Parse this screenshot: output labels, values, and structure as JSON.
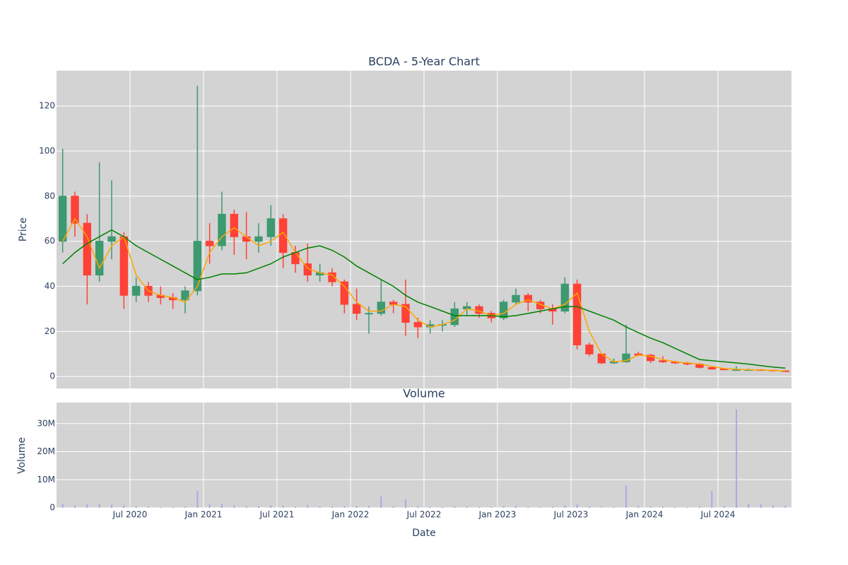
{
  "chart_data": {
    "type": "candlestick",
    "title": "BCDA - 5-Year Chart",
    "y_label": "Price",
    "x_label": "Date",
    "x": [
      "2020-01",
      "2020-02",
      "2020-03",
      "2020-04",
      "2020-05",
      "2020-06",
      "2020-07",
      "2020-08",
      "2020-09",
      "2020-10",
      "2020-11",
      "2020-12",
      "2021-01",
      "2021-02",
      "2021-03",
      "2021-04",
      "2021-05",
      "2021-06",
      "2021-07",
      "2021-08",
      "2021-09",
      "2021-10",
      "2021-11",
      "2021-12",
      "2022-01",
      "2022-02",
      "2022-03",
      "2022-04",
      "2022-05",
      "2022-06",
      "2022-07",
      "2022-08",
      "2022-09",
      "2022-10",
      "2022-11",
      "2022-12",
      "2023-01",
      "2023-02",
      "2023-03",
      "2023-04",
      "2023-05",
      "2023-06",
      "2023-07",
      "2023-08",
      "2023-09",
      "2023-10",
      "2023-11",
      "2023-12",
      "2024-01",
      "2024-02",
      "2024-03",
      "2024-04",
      "2024-05",
      "2024-06",
      "2024-07",
      "2024-08",
      "2024-09",
      "2024-10",
      "2024-11",
      "2024-12"
    ],
    "open": [
      60,
      80,
      68,
      45,
      60,
      62,
      36,
      40,
      36,
      35,
      34,
      38,
      60,
      58,
      72,
      62,
      60,
      62,
      70,
      55,
      50,
      45,
      46,
      42,
      32,
      28,
      28,
      33,
      32,
      24,
      22,
      23,
      23,
      30,
      31,
      28,
      26,
      33,
      36,
      33,
      30,
      29,
      41,
      14,
      10,
      6,
      6.5,
      10,
      9.5,
      7,
      6.5,
      6,
      5.5,
      4,
      3.3,
      3,
      3,
      3,
      2.8,
      2.5
    ],
    "high": [
      101,
      82,
      72,
      95,
      87,
      64,
      44,
      42,
      40,
      37,
      40,
      129,
      68,
      82,
      74,
      73,
      68,
      76,
      72,
      58,
      59,
      50,
      48,
      43,
      39,
      31,
      43,
      34,
      43,
      26,
      25,
      25,
      33,
      33,
      32,
      29,
      34,
      39,
      37,
      34,
      32,
      44,
      43,
      15,
      10,
      8,
      23,
      11,
      10,
      9,
      7,
      6.5,
      6,
      4.5,
      3.8,
      4.5,
      3.5,
      3.3,
      3,
      2.8
    ],
    "low": [
      55,
      62,
      32,
      42,
      52,
      30,
      33,
      33,
      32,
      30,
      28,
      36,
      50,
      56,
      54,
      52,
      55,
      58,
      48,
      46,
      42,
      42,
      40,
      28,
      25,
      19,
      27,
      28,
      18,
      17,
      19,
      20,
      22,
      27,
      26,
      24,
      25,
      32,
      29,
      28,
      23,
      28,
      12,
      9,
      5.5,
      5.5,
      6,
      9,
      6,
      6,
      5.5,
      5,
      3.5,
      3,
      2.8,
      2.5,
      2.6,
      2.5,
      2.2,
      2
    ],
    "close": [
      80,
      68,
      45,
      60,
      62,
      36,
      40,
      36,
      35,
      34,
      38,
      60,
      58,
      72,
      62,
      60,
      62,
      70,
      55,
      50,
      45,
      46,
      42,
      32,
      28,
      28,
      33,
      32,
      24,
      22,
      23,
      23,
      30,
      31,
      28,
      26,
      33,
      36,
      33,
      30,
      29,
      41,
      14,
      10,
      6,
      6.5,
      10,
      9.5,
      7,
      6.5,
      6,
      5.5,
      4,
      3.3,
      3,
      3,
      3,
      2.8,
      2.5,
      2.3
    ],
    "increasing_color": "#3d9970",
    "decreasing_color": "#ff4136",
    "lines": [
      {
        "color": "orange",
        "values": [
          60,
          70,
          62,
          48,
          58,
          62,
          45,
          38,
          36,
          35,
          33,
          40,
          55,
          62,
          66,
          62,
          58,
          60,
          64,
          55,
          48,
          46,
          45,
          40,
          33,
          29,
          29,
          32,
          31,
          25,
          22,
          23,
          25,
          30,
          29,
          27,
          28,
          32,
          34,
          32,
          30,
          32,
          37,
          20,
          10,
          6.5,
          7,
          9.5,
          9,
          7.5,
          6.5,
          6,
          5.5,
          4.5,
          3.5,
          3.2,
          3,
          2.9,
          2.7,
          2.5
        ]
      },
      {
        "color": "green",
        "values": [
          50,
          55,
          59,
          62,
          65,
          62,
          58,
          55,
          52,
          49,
          46,
          43,
          44,
          45.5,
          45.5,
          46,
          48,
          50,
          53,
          55,
          57,
          58,
          56,
          53,
          49,
          46,
          43,
          40,
          36,
          33,
          31,
          29,
          27,
          27,
          27,
          27,
          26.5,
          27,
          28,
          29,
          30,
          31,
          31,
          29,
          27,
          25,
          22,
          19.5,
          17,
          15,
          12.5,
          10,
          7.5,
          7,
          6.5,
          6,
          5.5,
          4.8,
          4.2,
          3.7
        ]
      }
    ],
    "xlim": [
      "2020-01",
      "2025-01"
    ],
    "xticks": [
      {
        "value": "2020-07",
        "label": "Jul 2020"
      },
      {
        "value": "2021-01",
        "label": "Jan 2021"
      },
      {
        "value": "2021-07",
        "label": "Jul 2021"
      },
      {
        "value": "2022-01",
        "label": "Jan 2022"
      },
      {
        "value": "2022-07",
        "label": "Jul 2022"
      },
      {
        "value": "2023-01",
        "label": "Jan 2023"
      },
      {
        "value": "2023-07",
        "label": "Jul 2023"
      },
      {
        "value": "2024-01",
        "label": "Jan 2024"
      },
      {
        "value": "2024-07",
        "label": "Jul 2024"
      }
    ],
    "ylim": [
      -5.3,
      135.7
    ],
    "yticks": [
      0,
      20,
      40,
      60,
      80,
      100,
      120
    ],
    "grid": true,
    "volume": {
      "title": "Volume",
      "y_label": "Volume",
      "color": "#a9a9e6",
      "values": [
        1500000,
        900000,
        1200000,
        1300000,
        1100000,
        900000,
        500000,
        400000,
        300000,
        300000,
        400000,
        6000000,
        1200000,
        1400000,
        900000,
        700000,
        600000,
        800000,
        700000,
        400000,
        900000,
        500000,
        400000,
        500000,
        700000,
        600000,
        4000000,
        500000,
        3000000,
        600000,
        400000,
        300000,
        500000,
        400000,
        300000,
        300000,
        500000,
        700000,
        400000,
        300000,
        400000,
        900000,
        1200000,
        500000,
        400000,
        300000,
        8000000,
        600000,
        500000,
        400000,
        300000,
        300000,
        400000,
        6000000,
        500000,
        35000000,
        1500000,
        1200000,
        900000,
        800000
      ],
      "ylim": [
        0,
        37500000
      ],
      "yticks": [
        0,
        {
          "value": 10000000,
          "label": "10M"
        },
        {
          "value": 20000000,
          "label": "20M"
        },
        {
          "value": 30000000,
          "label": "30M"
        }
      ]
    }
  }
}
